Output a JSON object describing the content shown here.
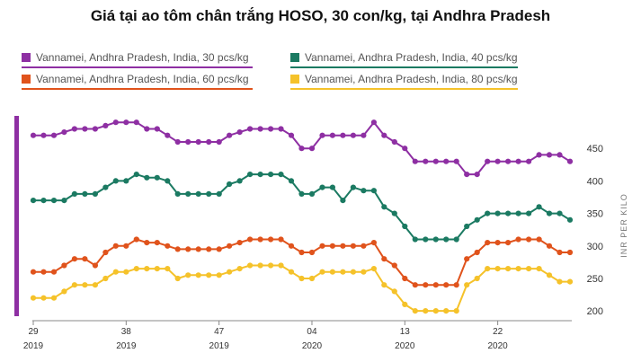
{
  "title": "Giá tại ao tôm chân trắng HOSO, 30 con/kg, tại Andhra Pradesh",
  "accent_color": "#8e2fa3",
  "chart_data": {
    "type": "line",
    "title": "Giá tại ao tôm chân trắng HOSO, 30 con/kg, tại Andhra Pradesh",
    "ylabel": "INR PER KILO",
    "xlabel": "",
    "ylim": [
      185,
      500
    ],
    "yticks": [
      200,
      250,
      300,
      350,
      400,
      450
    ],
    "grid": false,
    "legend_position": "top",
    "x_count": 53,
    "xticks": [
      {
        "index": 0,
        "week": "29",
        "year": "2019"
      },
      {
        "index": 9,
        "week": "38",
        "year": "2019"
      },
      {
        "index": 18,
        "week": "47",
        "year": "2019"
      },
      {
        "index": 27,
        "week": "04",
        "year": "2020"
      },
      {
        "index": 36,
        "week": "13",
        "year": "2020"
      },
      {
        "index": 45,
        "week": "22",
        "year": "2020"
      }
    ],
    "series": [
      {
        "name": "Vannamei, Andhra Pradesh, India, 30 pcs/kg",
        "color": "#8e2fa3",
        "values": [
          470,
          470,
          470,
          475,
          480,
          480,
          480,
          485,
          490,
          490,
          490,
          480,
          480,
          470,
          460,
          460,
          460,
          460,
          460,
          470,
          475,
          480,
          480,
          480,
          480,
          470,
          450,
          450,
          470,
          470,
          470,
          470,
          470,
          490,
          470,
          460,
          450,
          430,
          430,
          430,
          430,
          430,
          410,
          410,
          430,
          430,
          430,
          430,
          430,
          440,
          440,
          440,
          430
        ]
      },
      {
        "name": "Vannamei, Andhra Pradesh, India, 40 pcs/kg",
        "color": "#1b7a62",
        "values": [
          370,
          370,
          370,
          370,
          380,
          380,
          380,
          390,
          400,
          400,
          410,
          405,
          405,
          400,
          380,
          380,
          380,
          380,
          380,
          395,
          400,
          410,
          410,
          410,
          410,
          400,
          380,
          380,
          390,
          390,
          370,
          390,
          385,
          385,
          360,
          350,
          330,
          310,
          310,
          310,
          310,
          310,
          330,
          340,
          350,
          350,
          350,
          350,
          350,
          360,
          350,
          350,
          340
        ]
      },
      {
        "name": "Vannamei, Andhra Pradesh, India, 60 pcs/kg",
        "color": "#e0531c",
        "values": [
          260,
          260,
          260,
          270,
          280,
          280,
          270,
          290,
          300,
          300,
          310,
          305,
          305,
          300,
          295,
          295,
          295,
          295,
          295,
          300,
          305,
          310,
          310,
          310,
          310,
          300,
          290,
          290,
          300,
          300,
          300,
          300,
          300,
          305,
          280,
          270,
          250,
          240,
          240,
          240,
          240,
          240,
          280,
          290,
          305,
          305,
          305,
          310,
          310,
          310,
          300,
          290,
          290
        ]
      },
      {
        "name": "Vannamei, Andhra Pradesh, India, 80 pcs/kg",
        "color": "#f5c22a",
        "values": [
          220,
          220,
          220,
          230,
          240,
          240,
          240,
          250,
          260,
          260,
          265,
          265,
          265,
          265,
          250,
          255,
          255,
          255,
          255,
          260,
          265,
          270,
          270,
          270,
          270,
          260,
          250,
          250,
          260,
          260,
          260,
          260,
          260,
          265,
          240,
          230,
          210,
          200,
          200,
          200,
          200,
          200,
          240,
          250,
          265,
          265,
          265,
          265,
          265,
          265,
          255,
          245,
          245
        ]
      }
    ]
  }
}
